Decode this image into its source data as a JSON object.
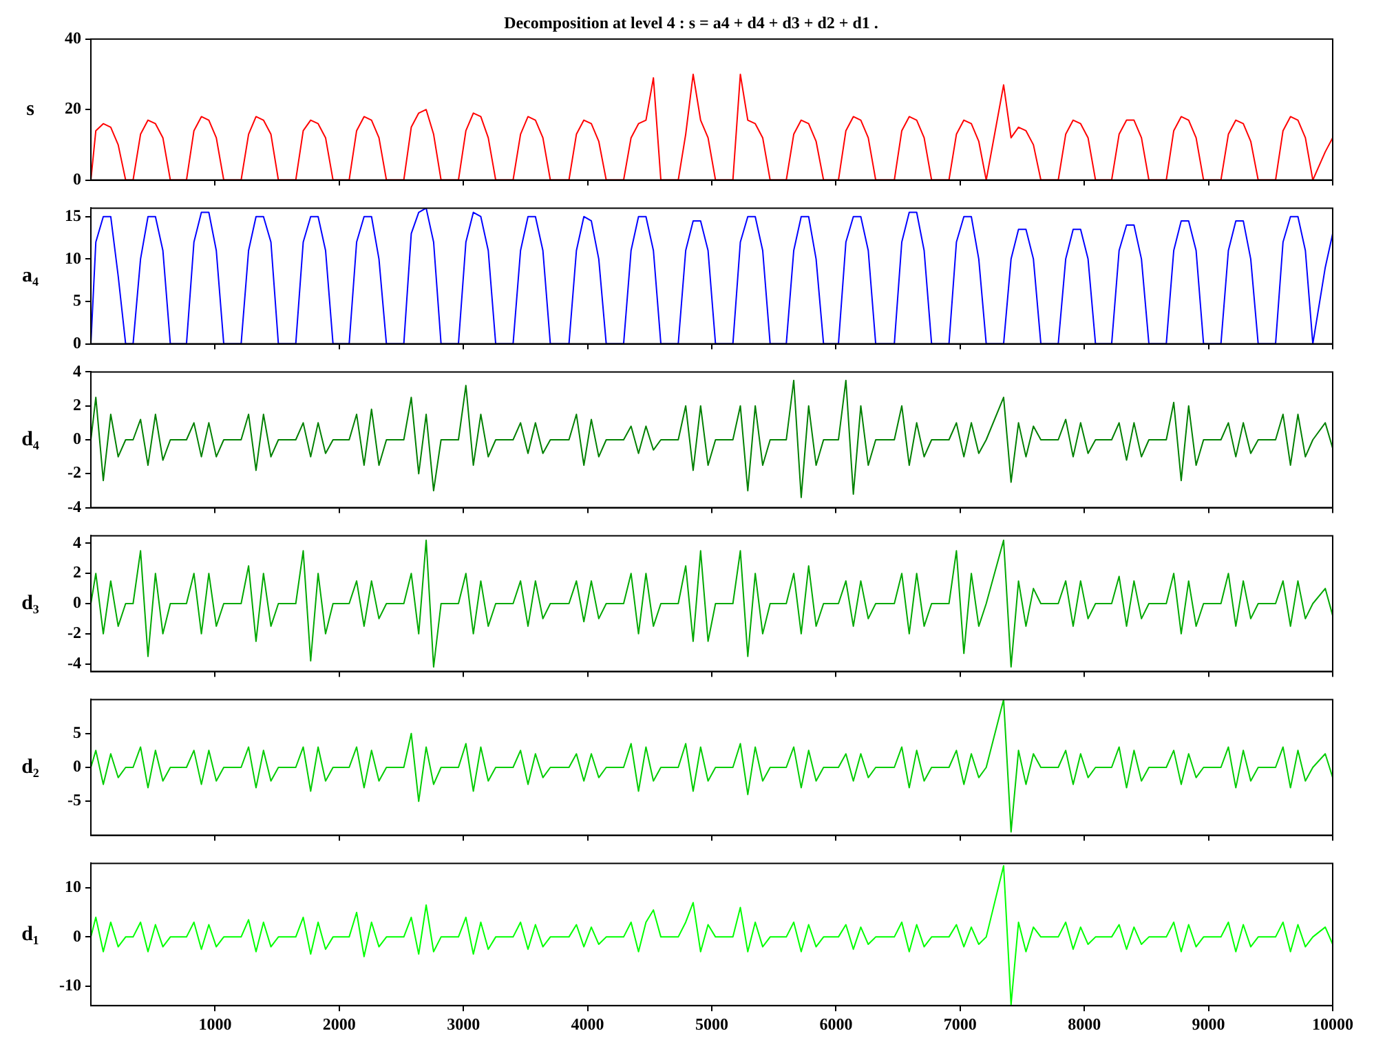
{
  "chart_data": [
    {
      "type": "line",
      "title": "Decomposition at level 4 : s = a4 + d4 + d3 + d2 + d1 .",
      "ylabel": "s",
      "color": "#ff0000",
      "marker": "none",
      "grid": false,
      "tick_labels": "y",
      "xlim": [
        0,
        10000
      ],
      "xticks": [
        1000,
        2000,
        3000,
        4000,
        5000,
        6000,
        7000,
        8000,
        9000,
        10000
      ],
      "ylim": [
        0,
        40
      ],
      "yticks": [
        0,
        20,
        40
      ],
      "x": [
        0,
        40,
        100,
        160,
        220,
        280,
        340,
        400,
        460,
        520,
        580,
        640,
        770,
        830,
        890,
        950,
        1010,
        1070,
        1210,
        1270,
        1330,
        1390,
        1450,
        1510,
        1650,
        1710,
        1770,
        1830,
        1890,
        1950,
        2080,
        2140,
        2200,
        2260,
        2320,
        2380,
        2520,
        2580,
        2640,
        2700,
        2760,
        2820,
        2960,
        3020,
        3080,
        3140,
        3200,
        3260,
        3400,
        3460,
        3520,
        3580,
        3640,
        3700,
        3850,
        3910,
        3970,
        4030,
        4090,
        4150,
        4290,
        4350,
        4410,
        4470,
        4530,
        4590,
        4730,
        4790,
        4850,
        4910,
        4970,
        5030,
        5170,
        5230,
        5290,
        5350,
        5410,
        5470,
        5600,
        5660,
        5720,
        5780,
        5840,
        5900,
        6020,
        6080,
        6140,
        6200,
        6260,
        6320,
        6470,
        6530,
        6590,
        6650,
        6710,
        6770,
        6910,
        6970,
        7030,
        7090,
        7150,
        7210,
        7350,
        7410,
        7470,
        7530,
        7590,
        7650,
        7790,
        7850,
        7910,
        7970,
        8030,
        8090,
        8220,
        8280,
        8340,
        8400,
        8460,
        8520,
        8660,
        8720,
        8780,
        8840,
        8900,
        8960,
        9100,
        9160,
        9220,
        9280,
        9340,
        9400,
        9540,
        9600,
        9660,
        9720,
        9780,
        9840,
        9940,
        10000
      ],
      "values": [
        0,
        14,
        16,
        15,
        10,
        0,
        0,
        13,
        17,
        16,
        12,
        0,
        0,
        14,
        18,
        17,
        12,
        0,
        0,
        13,
        18,
        17,
        13,
        0,
        0,
        14,
        17,
        16,
        12,
        0,
        0,
        14,
        18,
        17,
        12,
        0,
        0,
        15,
        19,
        20,
        13,
        0,
        0,
        14,
        19,
        18,
        12,
        0,
        0,
        13,
        18,
        17,
        12,
        0,
        0,
        13,
        17,
        16,
        11,
        0,
        0,
        12,
        16,
        17,
        29,
        0,
        0,
        13,
        30,
        17,
        12,
        0,
        0,
        30,
        17,
        16,
        12,
        0,
        0,
        13,
        17,
        16,
        11,
        0,
        0,
        14,
        18,
        17,
        12,
        0,
        0,
        14,
        18,
        17,
        12,
        0,
        0,
        13,
        17,
        16,
        11,
        0,
        27,
        12,
        15,
        14,
        10,
        0,
        0,
        13,
        17,
        16,
        12,
        0,
        0,
        13,
        17,
        17,
        12,
        0,
        0,
        14,
        18,
        17,
        12,
        0,
        0,
        13,
        17,
        16,
        11,
        0,
        0,
        14,
        18,
        17,
        12,
        0,
        8,
        12
      ]
    },
    {
      "type": "line",
      "ylabel": "a₄",
      "color": "#0000ff",
      "marker": "none",
      "grid": false,
      "tick_labels": "y",
      "xlim": [
        0,
        10000
      ],
      "xticks": [
        1000,
        2000,
        3000,
        4000,
        5000,
        6000,
        7000,
        8000,
        9000,
        10000
      ],
      "ylim": [
        0,
        16
      ],
      "yticks": [
        0,
        5,
        10,
        15
      ],
      "x": [
        0,
        40,
        100,
        160,
        220,
        280,
        340,
        400,
        460,
        520,
        580,
        640,
        770,
        830,
        890,
        950,
        1010,
        1070,
        1210,
        1270,
        1330,
        1390,
        1450,
        1510,
        1650,
        1710,
        1770,
        1830,
        1890,
        1950,
        2080,
        2140,
        2200,
        2260,
        2320,
        2380,
        2520,
        2580,
        2640,
        2700,
        2760,
        2820,
        2960,
        3020,
        3080,
        3140,
        3200,
        3260,
        3400,
        3460,
        3520,
        3580,
        3640,
        3700,
        3850,
        3910,
        3970,
        4030,
        4090,
        4150,
        4290,
        4350,
        4410,
        4470,
        4530,
        4590,
        4730,
        4790,
        4850,
        4910,
        4970,
        5030,
        5170,
        5230,
        5290,
        5350,
        5410,
        5470,
        5600,
        5660,
        5720,
        5780,
        5840,
        5900,
        6020,
        6080,
        6140,
        6200,
        6260,
        6320,
        6470,
        6530,
        6590,
        6650,
        6710,
        6770,
        6910,
        6970,
        7030,
        7090,
        7150,
        7210,
        7350,
        7410,
        7470,
        7530,
        7590,
        7650,
        7790,
        7850,
        7910,
        7970,
        8030,
        8090,
        8220,
        8280,
        8340,
        8400,
        8460,
        8520,
        8660,
        8720,
        8780,
        8840,
        8900,
        8960,
        9100,
        9160,
        9220,
        9280,
        9340,
        9400,
        9540,
        9600,
        9660,
        9720,
        9780,
        9840,
        9940,
        10000
      ],
      "values": [
        0,
        12,
        15,
        15,
        8,
        0,
        0,
        10,
        15,
        15,
        11,
        0,
        0,
        12,
        15.5,
        15.5,
        11,
        0,
        0,
        11,
        15,
        15,
        12,
        0,
        0,
        12,
        15,
        15,
        11,
        0,
        0,
        12,
        15,
        15,
        10,
        0,
        0,
        13,
        15.5,
        16,
        12,
        0,
        0,
        12,
        15.5,
        15,
        11,
        0,
        0,
        11,
        15,
        15,
        11,
        0,
        0,
        11,
        15,
        14.5,
        10,
        0,
        0,
        11,
        15,
        15,
        11,
        0,
        0,
        11,
        14.5,
        14.5,
        11,
        0,
        0,
        12,
        15,
        15,
        11,
        0,
        0,
        11,
        15,
        15,
        10,
        0,
        0,
        12,
        15,
        15,
        11,
        0,
        0,
        12,
        15.5,
        15.5,
        11,
        0,
        0,
        12,
        15,
        15,
        10,
        0,
        0,
        10,
        13.5,
        13.5,
        10,
        0,
        0,
        10,
        13.5,
        13.5,
        10,
        0,
        0,
        11,
        14,
        14,
        10,
        0,
        0,
        11,
        14.5,
        14.5,
        11,
        0,
        0,
        11,
        14.5,
        14.5,
        10,
        0,
        0,
        12,
        15,
        15,
        11,
        0,
        9,
        13
      ]
    },
    {
      "type": "line",
      "ylabel": "d₄",
      "color": "#008000",
      "marker": "none",
      "grid": false,
      "tick_labels": "y",
      "xlim": [
        0,
        10000
      ],
      "xticks": [
        1000,
        2000,
        3000,
        4000,
        5000,
        6000,
        7000,
        8000,
        9000,
        10000
      ],
      "ylim": [
        -4,
        4
      ],
      "yticks": [
        -4,
        -2,
        0,
        2,
        4
      ],
      "x": [
        0,
        40,
        100,
        160,
        220,
        280,
        340,
        400,
        460,
        520,
        580,
        640,
        770,
        830,
        890,
        950,
        1010,
        1070,
        1210,
        1270,
        1330,
        1390,
        1450,
        1510,
        1650,
        1710,
        1770,
        1830,
        1890,
        1950,
        2080,
        2140,
        2200,
        2260,
        2320,
        2380,
        2520,
        2580,
        2640,
        2700,
        2760,
        2820,
        2960,
        3020,
        3080,
        3140,
        3200,
        3260,
        3400,
        3460,
        3520,
        3580,
        3640,
        3700,
        3850,
        3910,
        3970,
        4030,
        4090,
        4150,
        4290,
        4350,
        4410,
        4470,
        4530,
        4590,
        4730,
        4790,
        4850,
        4910,
        4970,
        5030,
        5170,
        5230,
        5290,
        5350,
        5410,
        5470,
        5600,
        5660,
        5720,
        5780,
        5840,
        5900,
        6020,
        6080,
        6140,
        6200,
        6260,
        6320,
        6470,
        6530,
        6590,
        6650,
        6710,
        6770,
        6910,
        6970,
        7030,
        7090,
        7150,
        7210,
        7350,
        7410,
        7470,
        7530,
        7590,
        7650,
        7790,
        7850,
        7910,
        7970,
        8030,
        8090,
        8220,
        8280,
        8340,
        8400,
        8460,
        8520,
        8660,
        8720,
        8780,
        8840,
        8900,
        8960,
        9100,
        9160,
        9220,
        9280,
        9340,
        9400,
        9540,
        9600,
        9660,
        9720,
        9780,
        9840,
        9940,
        10000
      ],
      "values": [
        0,
        2.5,
        -2.4,
        1.5,
        -1,
        0,
        0,
        1.2,
        -1.5,
        1.5,
        -1.2,
        0,
        0,
        1,
        -1,
        1,
        -1,
        0,
        0,
        1.5,
        -1.8,
        1.5,
        -1,
        0,
        0,
        1,
        -1,
        1,
        -0.8,
        0,
        0,
        1.5,
        -1.5,
        1.8,
        -1.5,
        0,
        0,
        2.5,
        -2,
        1.5,
        -3,
        0,
        0,
        3.2,
        -1.5,
        1.5,
        -1,
        0,
        0,
        1,
        -0.8,
        1,
        -0.8,
        0,
        0,
        1.5,
        -1.5,
        1.2,
        -1,
        0,
        0,
        0.8,
        -0.8,
        0.8,
        -0.6,
        0,
        0,
        2,
        -1.8,
        2,
        -1.5,
        0,
        0,
        2,
        -3,
        2,
        -1.5,
        0,
        0,
        3.5,
        -3.4,
        2,
        -1.5,
        0,
        0,
        3.5,
        -3.2,
        2,
        -1.5,
        0,
        0,
        2,
        -1.5,
        1,
        -1,
        0,
        0,
        1,
        -1,
        1,
        -0.8,
        0,
        2.5,
        -2.5,
        1,
        -1,
        0.8,
        0,
        0,
        1.2,
        -1,
        1,
        -0.8,
        0,
        0,
        1,
        -1.2,
        1,
        -1,
        0,
        0,
        2.2,
        -2.4,
        2,
        -1.5,
        0,
        0,
        1,
        -1,
        1,
        -0.8,
        0,
        0,
        1.5,
        -1.5,
        1.5,
        -1,
        0,
        1,
        -0.5
      ]
    },
    {
      "type": "line",
      "ylabel": "d₃",
      "color": "#00a800",
      "marker": "none",
      "grid": false,
      "tick_labels": "y",
      "xlim": [
        0,
        10000
      ],
      "xticks": [
        1000,
        2000,
        3000,
        4000,
        5000,
        6000,
        7000,
        8000,
        9000,
        10000
      ],
      "ylim": [
        -4.5,
        4.5
      ],
      "yticks": [
        -4,
        -2,
        0,
        2,
        4
      ],
      "x": [
        0,
        40,
        100,
        160,
        220,
        280,
        340,
        400,
        460,
        520,
        580,
        640,
        770,
        830,
        890,
        950,
        1010,
        1070,
        1210,
        1270,
        1330,
        1390,
        1450,
        1510,
        1650,
        1710,
        1770,
        1830,
        1890,
        1950,
        2080,
        2140,
        2200,
        2260,
        2320,
        2380,
        2520,
        2580,
        2640,
        2700,
        2760,
        2820,
        2960,
        3020,
        3080,
        3140,
        3200,
        3260,
        3400,
        3460,
        3520,
        3580,
        3640,
        3700,
        3850,
        3910,
        3970,
        4030,
        4090,
        4150,
        4290,
        4350,
        4410,
        4470,
        4530,
        4590,
        4730,
        4790,
        4850,
        4910,
        4970,
        5030,
        5170,
        5230,
        5290,
        5350,
        5410,
        5470,
        5600,
        5660,
        5720,
        5780,
        5840,
        5900,
        6020,
        6080,
        6140,
        6200,
        6260,
        6320,
        6470,
        6530,
        6590,
        6650,
        6710,
        6770,
        6910,
        6970,
        7030,
        7090,
        7150,
        7210,
        7350,
        7410,
        7470,
        7530,
        7590,
        7650,
        7790,
        7850,
        7910,
        7970,
        8030,
        8090,
        8220,
        8280,
        8340,
        8400,
        8460,
        8520,
        8660,
        8720,
        8780,
        8840,
        8900,
        8960,
        9100,
        9160,
        9220,
        9280,
        9340,
        9400,
        9540,
        9600,
        9660,
        9720,
        9780,
        9840,
        9940,
        10000
      ],
      "values": [
        0,
        2,
        -2,
        1.5,
        -1.5,
        0,
        0,
        3.5,
        -3.5,
        2,
        -2,
        0,
        0,
        2,
        -2,
        2,
        -1.5,
        0,
        0,
        2.5,
        -2.5,
        2,
        -1.5,
        0,
        0,
        3.5,
        -3.8,
        2,
        -2,
        0,
        0,
        1.5,
        -1.5,
        1.5,
        -1,
        0,
        0,
        2,
        -2,
        4.2,
        -4.2,
        0,
        0,
        2,
        -2,
        1.5,
        -1.5,
        0,
        0,
        1.5,
        -1.5,
        1.5,
        -1,
        0,
        0,
        1.5,
        -1.2,
        1.5,
        -1,
        0,
        0,
        2,
        -2,
        2,
        -1.5,
        0,
        0,
        2.5,
        -2.5,
        3.5,
        -2.5,
        0,
        0,
        3.5,
        -3.5,
        2,
        -2,
        0,
        0,
        2,
        -2,
        2.5,
        -1.5,
        0,
        0,
        1.5,
        -1.5,
        1.5,
        -1,
        0,
        0,
        2,
        -2,
        2,
        -1.5,
        0,
        0,
        3.5,
        -3.3,
        2,
        -1.5,
        0,
        4.2,
        -4.2,
        1.5,
        -1.5,
        1,
        0,
        0,
        1.5,
        -1.5,
        1.5,
        -1,
        0,
        0,
        1.8,
        -1.5,
        1.5,
        -1,
        0,
        0,
        2,
        -2,
        1.5,
        -1.5,
        0,
        0,
        2,
        -1.5,
        1.5,
        -1,
        0,
        0,
        1.5,
        -1.5,
        1.5,
        -1,
        0,
        1,
        -0.8
      ]
    },
    {
      "type": "line",
      "ylabel": "d₂",
      "color": "#00cc00",
      "marker": "none",
      "grid": false,
      "tick_labels": "y",
      "xlim": [
        0,
        10000
      ],
      "xticks": [
        1000,
        2000,
        3000,
        4000,
        5000,
        6000,
        7000,
        8000,
        9000,
        10000
      ],
      "ylim": [
        -10,
        10
      ],
      "yticks": [
        -5,
        0,
        5
      ],
      "x": [
        0,
        40,
        100,
        160,
        220,
        280,
        340,
        400,
        460,
        520,
        580,
        640,
        770,
        830,
        890,
        950,
        1010,
        1070,
        1210,
        1270,
        1330,
        1390,
        1450,
        1510,
        1650,
        1710,
        1770,
        1830,
        1890,
        1950,
        2080,
        2140,
        2200,
        2260,
        2320,
        2380,
        2520,
        2580,
        2640,
        2700,
        2760,
        2820,
        2960,
        3020,
        3080,
        3140,
        3200,
        3260,
        3400,
        3460,
        3520,
        3580,
        3640,
        3700,
        3850,
        3910,
        3970,
        4030,
        4090,
        4150,
        4290,
        4350,
        4410,
        4470,
        4530,
        4590,
        4730,
        4790,
        4850,
        4910,
        4970,
        5030,
        5170,
        5230,
        5290,
        5350,
        5410,
        5470,
        5600,
        5660,
        5720,
        5780,
        5840,
        5900,
        6020,
        6080,
        6140,
        6200,
        6260,
        6320,
        6470,
        6530,
        6590,
        6650,
        6710,
        6770,
        6910,
        6970,
        7030,
        7090,
        7150,
        7210,
        7350,
        7410,
        7470,
        7530,
        7590,
        7650,
        7790,
        7850,
        7910,
        7970,
        8030,
        8090,
        8220,
        8280,
        8340,
        8400,
        8460,
        8520,
        8660,
        8720,
        8780,
        8840,
        8900,
        8960,
        9100,
        9160,
        9220,
        9280,
        9340,
        9400,
        9540,
        9600,
        9660,
        9720,
        9780,
        9840,
        9940,
        10000
      ],
      "values": [
        0,
        2.5,
        -2.5,
        2,
        -1.5,
        0,
        0,
        3,
        -3,
        2.5,
        -2,
        0,
        0,
        2.5,
        -2.5,
        2.5,
        -2,
        0,
        0,
        3,
        -3,
        2.5,
        -2,
        0,
        0,
        3,
        -3.5,
        3,
        -2,
        0,
        0,
        3,
        -3,
        2.5,
        -2,
        0,
        0,
        5,
        -5,
        3,
        -2.5,
        0,
        0,
        3.5,
        -3.5,
        3,
        -2,
        0,
        0,
        2.5,
        -2.5,
        2,
        -1.5,
        0,
        0,
        2,
        -2,
        2,
        -1.5,
        0,
        0,
        3.5,
        -3.5,
        3,
        -2,
        0,
        0,
        3.5,
        -3.5,
        3,
        -2,
        0,
        0,
        3.5,
        -4,
        3,
        -2,
        0,
        0,
        3,
        -3,
        2.5,
        -2,
        0,
        0,
        2,
        -2,
        2,
        -1.5,
        0,
        0,
        3,
        -3,
        2.5,
        -2,
        0,
        0,
        2.5,
        -2.5,
        2,
        -1.5,
        0,
        10,
        -9.5,
        2.5,
        -2.5,
        2,
        0,
        0,
        2.5,
        -2.5,
        2,
        -1.5,
        0,
        0,
        3,
        -3,
        2.5,
        -2,
        0,
        0,
        2.5,
        -2.5,
        2,
        -1.5,
        0,
        0,
        3,
        -3,
        2.5,
        -2,
        0,
        0,
        3,
        -3,
        2.5,
        -2,
        0,
        2,
        -1.5
      ]
    },
    {
      "type": "line",
      "ylabel": "d₁",
      "color": "#00ff00",
      "marker": "none",
      "grid": false,
      "xlim": [
        0,
        10000
      ],
      "xticks": [
        1000,
        2000,
        3000,
        4000,
        5000,
        6000,
        7000,
        8000,
        9000,
        10000
      ],
      "ylim": [
        -14,
        15
      ],
      "yticks": [
        -10,
        0,
        10
      ],
      "x": [
        0,
        40,
        100,
        160,
        220,
        280,
        340,
        400,
        460,
        520,
        580,
        640,
        770,
        830,
        890,
        950,
        1010,
        1070,
        1210,
        1270,
        1330,
        1390,
        1450,
        1510,
        1650,
        1710,
        1770,
        1830,
        1890,
        1950,
        2080,
        2140,
        2200,
        2260,
        2320,
        2380,
        2520,
        2580,
        2640,
        2700,
        2760,
        2820,
        2960,
        3020,
        3080,
        3140,
        3200,
        3260,
        3400,
        3460,
        3520,
        3580,
        3640,
        3700,
        3850,
        3910,
        3970,
        4030,
        4090,
        4150,
        4290,
        4350,
        4410,
        4470,
        4530,
        4590,
        4730,
        4790,
        4850,
        4910,
        4970,
        5030,
        5170,
        5230,
        5290,
        5350,
        5410,
        5470,
        5600,
        5660,
        5720,
        5780,
        5840,
        5900,
        6020,
        6080,
        6140,
        6200,
        6260,
        6320,
        6470,
        6530,
        6590,
        6650,
        6710,
        6770,
        6910,
        6970,
        7030,
        7090,
        7150,
        7210,
        7350,
        7410,
        7470,
        7530,
        7590,
        7650,
        7790,
        7850,
        7910,
        7970,
        8030,
        8090,
        8220,
        8280,
        8340,
        8400,
        8460,
        8520,
        8660,
        8720,
        8780,
        8840,
        8900,
        8960,
        9100,
        9160,
        9220,
        9280,
        9340,
        9400,
        9540,
        9600,
        9660,
        9720,
        9780,
        9840,
        9940,
        10000
      ],
      "values": [
        0,
        4,
        -3,
        3,
        -2,
        0,
        0,
        3,
        -3,
        2.5,
        -2,
        0,
        0,
        3,
        -2.5,
        2.5,
        -2,
        0,
        0,
        3.5,
        -3,
        3,
        -2,
        0,
        0,
        4,
        -3.5,
        3,
        -2.5,
        0,
        0,
        5,
        -4,
        3,
        -2,
        0,
        0,
        4,
        -3.5,
        6.5,
        -3,
        0,
        0,
        4,
        -3.5,
        3,
        -2.5,
        0,
        0,
        3,
        -2.5,
        2.5,
        -2,
        0,
        0,
        2.5,
        -2,
        2,
        -1.5,
        0,
        0,
        3,
        -3,
        3,
        5.5,
        0,
        0,
        3,
        7,
        -3,
        2.5,
        0,
        0,
        6,
        -3,
        3,
        -2,
        0,
        0,
        3,
        -3,
        2.5,
        -2,
        0,
        0,
        2.5,
        -2.5,
        2,
        -1.5,
        0,
        0,
        3,
        -3,
        2.5,
        -2,
        0,
        0,
        2.5,
        -2,
        2,
        -1.5,
        0,
        14.5,
        -13.8,
        3,
        -3,
        2,
        0,
        0,
        3,
        -2.5,
        2,
        -1.5,
        0,
        0,
        2.5,
        -2.5,
        2,
        -1.5,
        0,
        0,
        3,
        -3,
        2.5,
        -2,
        0,
        0,
        3,
        -3,
        2.5,
        -2,
        0,
        0,
        3,
        -3,
        2.5,
        -2,
        0,
        2,
        -1.5
      ]
    }
  ]
}
